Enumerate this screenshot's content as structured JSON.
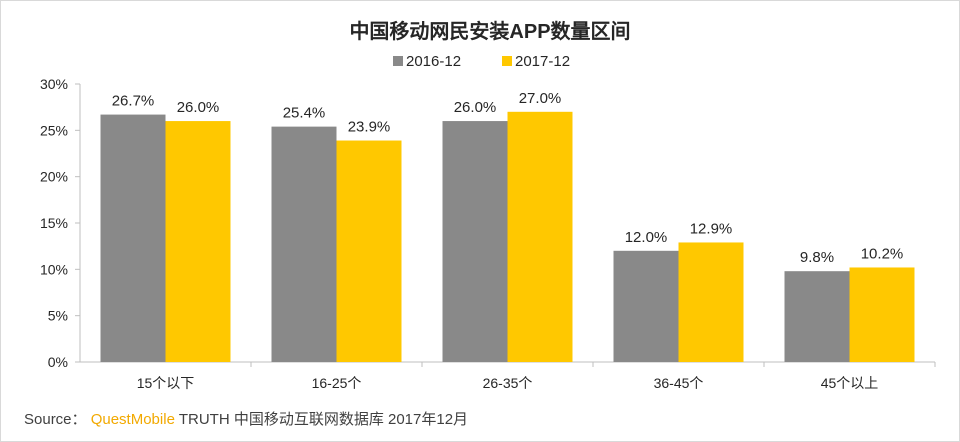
{
  "chart_data": {
    "type": "bar",
    "title": "中国移动网民安装APP数量区间",
    "categories": [
      "15个以下",
      "16-25个",
      "26-35个",
      "36-45个",
      "45个以上"
    ],
    "series": [
      {
        "name": "2016-12",
        "color": "#898989",
        "values": [
          26.7,
          25.4,
          26.0,
          12.0,
          9.8
        ],
        "labels": [
          "26.7%",
          "25.4%",
          "26.0%",
          "12.0%",
          "9.8%"
        ]
      },
      {
        "name": "2017-12",
        "color": "#ffc800",
        "values": [
          26.0,
          23.9,
          27.0,
          12.9,
          10.2
        ],
        "labels": [
          "26.0%",
          "23.9%",
          "27.0%",
          "12.9%",
          "10.2%"
        ]
      }
    ],
    "ylim": [
      0,
      30
    ],
    "yticks": [
      0,
      5,
      10,
      15,
      20,
      25,
      30
    ],
    "ytick_labels": [
      "0%",
      "5%",
      "10%",
      "15%",
      "20%",
      "25%",
      "30%"
    ],
    "grid": false,
    "legend_position": "top-center"
  },
  "source": {
    "prefix": "Source：",
    "brand": "QuestMobile",
    "text": "TRUTH 中国移动互联网数据库 2017年12月"
  }
}
